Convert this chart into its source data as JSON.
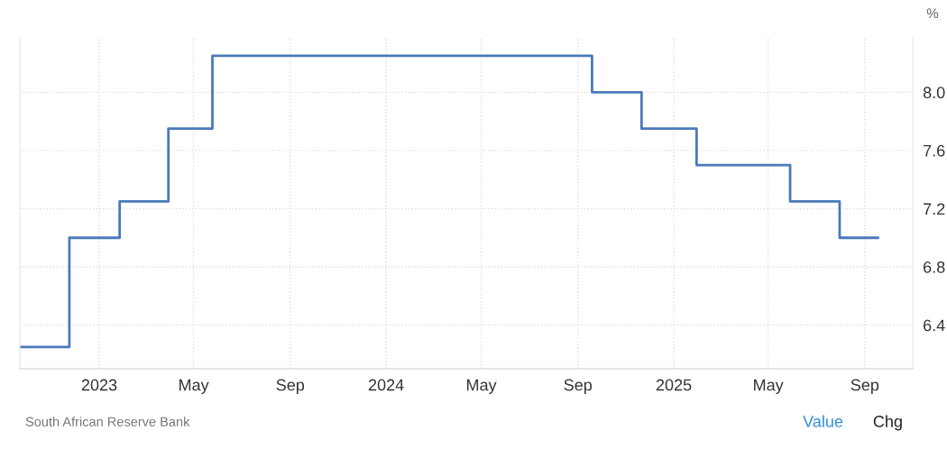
{
  "chart_data": {
    "type": "step",
    "ylabel": "%",
    "x": [
      "2022-09-22",
      "2022-11-24",
      "2023-01-27",
      "2023-03-30",
      "2023-05-25",
      "2024-09-19",
      "2024-11-21",
      "2025-01-30",
      "2025-05-29",
      "2025-07-31",
      "2025-09-18"
    ],
    "series": [
      {
        "color": "#4a7ab8",
        "values": [
          6.25,
          7.0,
          7.25,
          7.75,
          8.25,
          8.0,
          7.75,
          7.5,
          7.25,
          7.0,
          7.0
        ]
      }
    ],
    "xlim": [
      "2022-09-22",
      "2025-11-01"
    ],
    "xticks": [
      {
        "value": "2023-01-01",
        "label": "2023"
      },
      {
        "value": "2023-05-01",
        "label": "May"
      },
      {
        "value": "2023-09-01",
        "label": "Sep"
      },
      {
        "value": "2024-01-01",
        "label": "2024"
      },
      {
        "value": "2024-05-01",
        "label": "May"
      },
      {
        "value": "2024-09-01",
        "label": "Sep"
      },
      {
        "value": "2025-01-01",
        "label": "2025"
      },
      {
        "value": "2025-05-01",
        "label": "May"
      },
      {
        "value": "2025-09-01",
        "label": "Sep"
      }
    ],
    "ylim": [
      6.1,
      8.38
    ],
    "yticks": [
      6.4,
      6.8,
      7.2,
      7.6,
      {
        "value": 8.0,
        "label": "8.0"
      }
    ],
    "grid": true,
    "line_style": "solid",
    "marker": "none",
    "annotations": [
      "South African Reserve Bank",
      "Value",
      "Chg"
    ]
  }
}
